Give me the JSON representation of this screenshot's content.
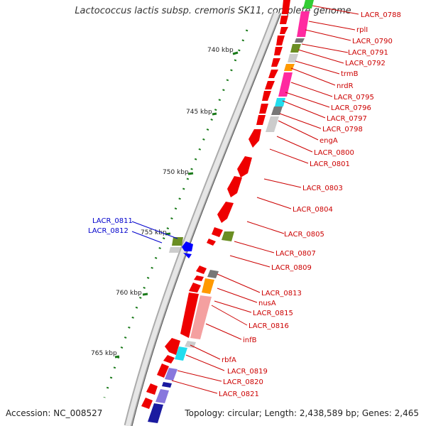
{
  "title": "Lactococcus lactis subsp. cremoris SK11, complete genome",
  "footer": {
    "accession": "Accession: NC_008527",
    "stats": "Topology: circular; Length: 2,438,589 bp; Genes: 2,465"
  },
  "colors": {
    "label_red": "#cc0000",
    "label_blue": "#0000cc",
    "ruler_green": "#1a7a1a",
    "gene_red": "#ee0000",
    "magenta": "#ff2aa0",
    "olive": "#6b8e23",
    "orange": "#ff9900",
    "cyan": "#22ddee",
    "grey": "#777777",
    "light_grey": "#cccccc",
    "purple": "#8877dd",
    "navy": "#1a1aa0",
    "blue": "#0000ff",
    "green": "#33cc33",
    "pink": "#f4a0a0"
  },
  "ruler": {
    "ticks": [
      {
        "label": "740 kbp",
        "kbp": 740
      },
      {
        "label": "745 kbp",
        "kbp": 745
      },
      {
        "label": "750 kbp",
        "kbp": 750
      },
      {
        "label": "755 kbp",
        "kbp": 755
      },
      {
        "label": "760 kbp",
        "kbp": 760
      },
      {
        "label": "765 kbp",
        "kbp": 765
      }
    ]
  },
  "gene_labels": [
    {
      "text": "LACR_0788",
      "color": "red"
    },
    {
      "text": "rplI",
      "color": "red"
    },
    {
      "text": "LACR_0790",
      "color": "red"
    },
    {
      "text": "LACR_0791",
      "color": "red"
    },
    {
      "text": "LACR_0792",
      "color": "red"
    },
    {
      "text": "trmB",
      "color": "red"
    },
    {
      "text": "nrdR",
      "color": "red"
    },
    {
      "text": "LACR_0795",
      "color": "red"
    },
    {
      "text": "LACR_0796",
      "color": "red"
    },
    {
      "text": "LACR_0797",
      "color": "red"
    },
    {
      "text": "LACR_0798",
      "color": "red"
    },
    {
      "text": "engA",
      "color": "red"
    },
    {
      "text": "LACR_0800",
      "color": "red"
    },
    {
      "text": "LACR_0801",
      "color": "red"
    },
    {
      "text": "LACR_0803",
      "color": "red"
    },
    {
      "text": "LACR_0804",
      "color": "red"
    },
    {
      "text": "LACR_0805",
      "color": "red"
    },
    {
      "text": "LACR_0807",
      "color": "red"
    },
    {
      "text": "LACR_0809",
      "color": "red"
    },
    {
      "text": "LACR_0813",
      "color": "red"
    },
    {
      "text": "nusA",
      "color": "red"
    },
    {
      "text": "LACR_0815",
      "color": "red"
    },
    {
      "text": "LACR_0816",
      "color": "red"
    },
    {
      "text": "infB",
      "color": "red"
    },
    {
      "text": "rbfA",
      "color": "red"
    },
    {
      "text": "LACR_0819",
      "color": "red"
    },
    {
      "text": "LACR_0820",
      "color": "red"
    },
    {
      "text": "LACR_0821",
      "color": "red"
    },
    {
      "text": "LACR_0811",
      "color": "blue"
    },
    {
      "text": "LACR_0812",
      "color": "blue"
    }
  ]
}
